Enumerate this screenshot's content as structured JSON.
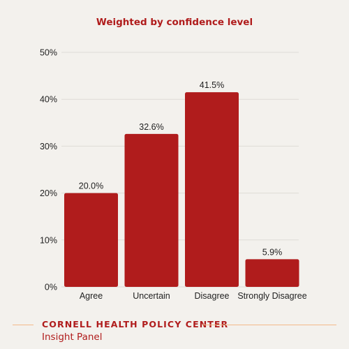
{
  "chart_data": {
    "type": "bar",
    "title": "Weighted by confidence level",
    "categories": [
      "Agree",
      "Uncertain",
      "Disagree",
      "Strongly Disagree"
    ],
    "values": [
      20.0,
      32.6,
      41.5,
      5.9
    ],
    "value_labels": [
      "20.0%",
      "32.6%",
      "41.5%",
      "5.9%"
    ],
    "xlabel": "",
    "ylabel": "",
    "ylim": [
      0,
      50
    ],
    "y_ticks": [
      0,
      10,
      20,
      30,
      40,
      50
    ],
    "y_tick_labels": [
      "0%",
      "10%",
      "20%",
      "30%",
      "40%",
      "50%"
    ],
    "grid": true,
    "legend": "none"
  },
  "footer": {
    "org": "CORNELL HEALTH POLICY CENTER",
    "sub": "Insight Panel"
  },
  "colors": {
    "bar": "#b01c1c",
    "title": "#b01c1c",
    "accent_line": "#f2b98a",
    "text": "#222222",
    "grid": "#dedbd6",
    "background": "#f3f1ed"
  }
}
